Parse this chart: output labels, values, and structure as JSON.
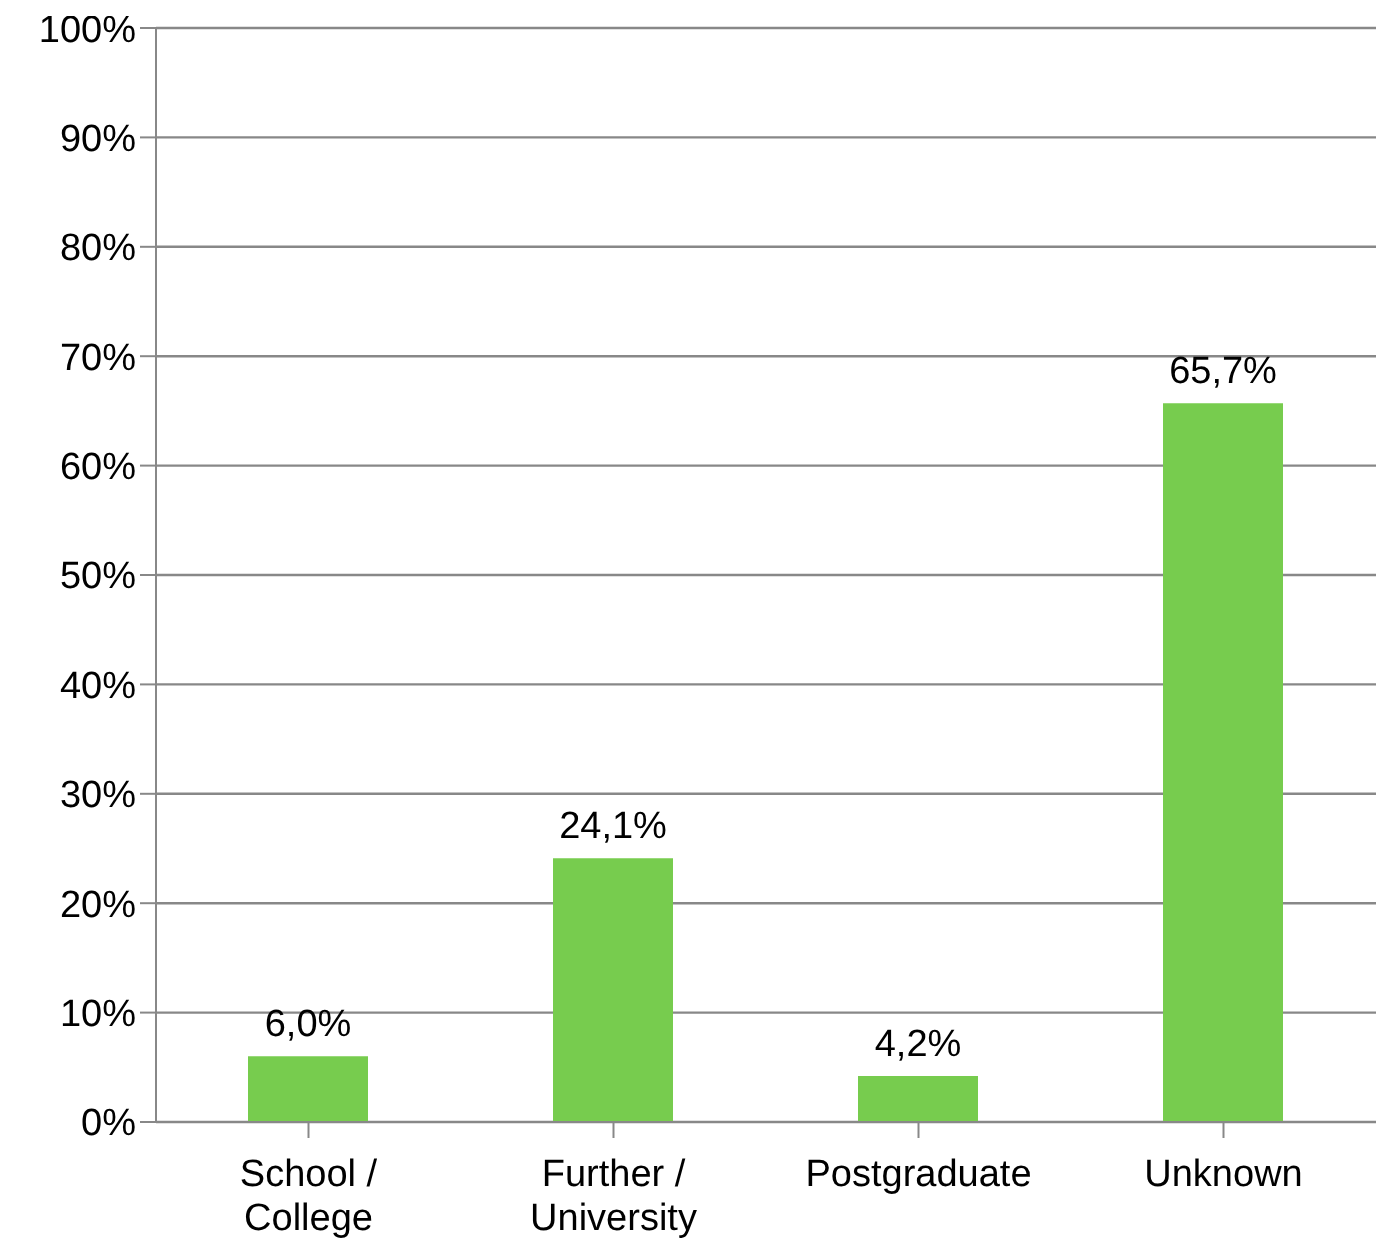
{
  "chart_data": {
    "type": "bar",
    "categories": [
      "School / College",
      "Further / University",
      "Postgraduate",
      "Unknown"
    ],
    "values": [
      6.0,
      24.1,
      4.2,
      65.7
    ],
    "value_labels": [
      "6,0%",
      "24,1%",
      "4,2%",
      "65,7%"
    ],
    "color": "#77cc4e",
    "ylim": [
      0,
      100
    ],
    "yticks": [
      {
        "value": 0,
        "label": "0%"
      },
      {
        "value": 10,
        "label": "10%"
      },
      {
        "value": 20,
        "label": "20%"
      },
      {
        "value": 30,
        "label": "30%"
      },
      {
        "value": 40,
        "label": "40%"
      },
      {
        "value": 50,
        "label": "50%"
      },
      {
        "value": 60,
        "label": "60%"
      },
      {
        "value": 70,
        "label": "70%"
      },
      {
        "value": 80,
        "label": "80%"
      },
      {
        "value": 90,
        "label": "90%"
      },
      {
        "value": 100,
        "label": "100%"
      }
    ],
    "grid": "y",
    "legend": false
  }
}
